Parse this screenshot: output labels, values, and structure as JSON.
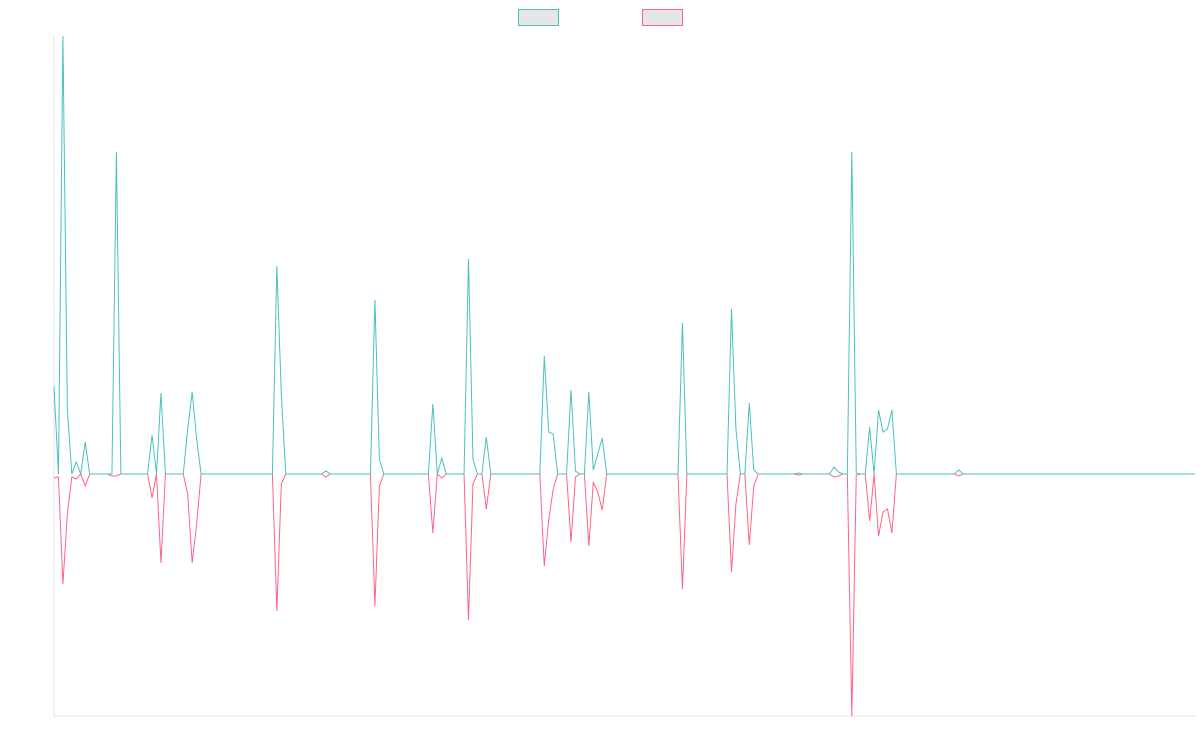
{
  "chart_data": {
    "type": "line",
    "ylim": [
      -24.2,
      43.8
    ],
    "grid": false,
    "legend": "top",
    "series": [
      {
        "color": "#4bc0c0",
        "values": [
          8.7,
          0,
          43.8,
          6.4,
          0,
          1.2,
          0,
          3.2,
          0,
          0,
          0,
          0,
          0,
          0,
          32.2,
          0,
          0,
          0,
          0,
          0,
          0,
          0,
          3.9,
          0,
          8.1,
          0,
          0,
          0,
          0,
          0,
          4.5,
          8.2,
          3.5,
          0,
          0,
          0,
          0,
          0,
          0,
          0,
          0,
          0,
          0,
          0,
          0,
          0,
          0,
          0,
          0,
          0,
          20.8,
          8,
          0,
          0,
          0,
          0,
          0,
          0,
          0,
          0,
          0,
          0.3,
          0,
          0,
          0,
          0,
          0,
          0,
          0,
          0,
          0,
          0,
          17.4,
          1.5,
          0,
          0,
          0,
          0,
          0,
          0,
          0,
          0,
          0,
          0,
          0,
          7,
          0,
          1.6,
          0,
          0,
          0,
          0,
          0,
          21.5,
          1.5,
          0,
          0,
          3.7,
          0,
          0,
          0,
          0,
          0,
          0,
          0,
          0,
          0,
          0,
          0,
          0,
          11.8,
          4.2,
          4,
          0,
          0,
          0,
          8.4,
          0.3,
          0,
          0,
          8.2,
          0.4,
          2,
          3.6,
          0,
          0,
          0,
          0,
          0,
          0,
          0,
          0,
          0,
          0,
          0,
          0,
          0,
          0,
          0,
          0,
          0,
          15.1,
          0,
          0,
          0,
          0,
          0,
          0,
          0,
          0,
          0,
          0,
          16.5,
          4.5,
          0,
          0,
          7.1,
          0.4,
          0,
          0,
          0,
          0,
          0,
          0,
          0,
          0,
          0,
          0.1,
          0,
          0,
          0,
          0,
          0,
          0,
          0,
          0.7,
          0.2,
          0,
          0,
          32.2,
          0.1,
          0,
          0,
          4.7,
          0,
          6.4,
          4.2,
          4.5,
          6.4,
          0,
          0,
          0,
          0,
          0,
          0,
          0,
          0,
          0,
          0,
          0,
          0,
          0,
          0,
          0.4,
          0,
          0,
          0,
          0,
          0,
          0,
          0,
          0,
          0,
          0,
          0,
          0,
          0,
          0,
          0,
          0,
          0,
          0,
          0,
          0,
          0,
          0,
          0,
          0,
          0,
          0,
          0,
          0,
          0,
          0,
          0,
          0,
          0,
          0,
          0,
          0,
          0,
          0,
          0,
          0,
          0,
          0,
          0,
          0,
          0,
          0,
          0,
          0,
          0,
          0,
          0,
          0,
          0
        ]
      },
      {
        "color": "#ff6384",
        "values": [
          -0.4,
          -0.3,
          -11,
          -4,
          -0.3,
          -0.5,
          0,
          -1.2,
          0,
          0,
          0,
          0,
          0,
          -0.2,
          -0.2,
          0,
          0,
          0,
          0,
          0,
          0,
          0,
          -2.4,
          0,
          -8.9,
          0,
          0,
          0,
          0,
          0,
          -2,
          -8.9,
          -5,
          0,
          0,
          0,
          0,
          0,
          0,
          0,
          0,
          0,
          0,
          0,
          0,
          0,
          0,
          0,
          0,
          0,
          -13.7,
          -1,
          0,
          0,
          0,
          0,
          0,
          0,
          0,
          0,
          0,
          -0.3,
          0,
          0,
          0,
          0,
          0,
          0,
          0,
          0,
          0,
          0,
          -13.2,
          -1.2,
          0,
          0,
          0,
          0,
          0,
          0,
          0,
          0,
          0,
          0,
          0,
          -5.9,
          0,
          -0.4,
          0,
          0,
          0,
          0,
          0,
          -14.6,
          -1,
          0,
          0,
          -3.5,
          0,
          0,
          0,
          0,
          0,
          0,
          0,
          0,
          0,
          0,
          0,
          0,
          -9.2,
          -4.6,
          -1.5,
          0,
          0,
          0,
          -6.8,
          -0.3,
          0,
          0,
          -7.2,
          -0.8,
          -1.8,
          -3.6,
          0,
          0,
          0,
          0,
          0,
          0,
          0,
          0,
          0,
          0,
          0,
          0,
          0,
          0,
          0,
          0,
          0,
          -11.5,
          0,
          0,
          0,
          0,
          0,
          0,
          0,
          0,
          0,
          0,
          -9.8,
          -3,
          0,
          0,
          -7.1,
          -1.2,
          0,
          0,
          0,
          0,
          0,
          0,
          0,
          0,
          0,
          -0.1,
          0,
          0,
          0,
          0,
          0,
          0,
          0,
          -0.3,
          -0.2,
          0,
          0,
          -24.2,
          -0.1,
          0,
          0,
          -4.7,
          0,
          -6.2,
          -3.8,
          -3.5,
          -5.9,
          0,
          0,
          0,
          0,
          0,
          0,
          0,
          0,
          0,
          0,
          0,
          0,
          0,
          0,
          -0.2,
          0,
          0,
          0,
          0,
          0,
          0,
          0,
          0,
          0,
          0,
          0,
          0,
          0,
          0,
          0,
          0,
          0,
          0,
          0,
          0,
          0,
          0,
          0,
          0,
          0,
          0,
          0,
          0,
          0,
          0,
          0,
          0,
          0,
          0,
          0,
          0,
          0,
          0,
          0,
          0,
          0,
          0,
          0,
          0,
          0,
          0,
          0,
          0,
          0,
          0,
          0,
          0,
          0
        ]
      }
    ]
  }
}
